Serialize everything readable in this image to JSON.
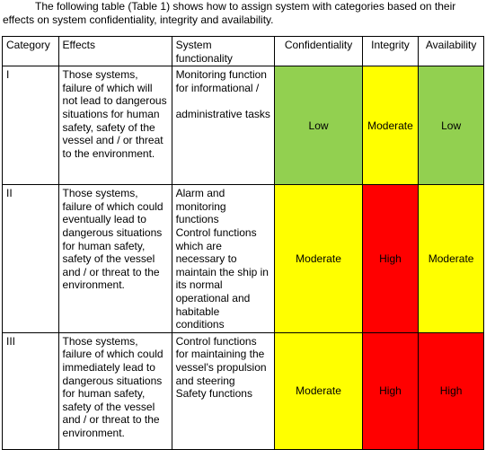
{
  "intro_text": "The following table (Table 1) shows how to assign system with categories based on their effects on system confidentiality, integrity and availability.",
  "colors": {
    "low": "#92d050",
    "moderate": "#ffff00",
    "high": "#ff0000"
  },
  "table": {
    "headers": {
      "category": "Category",
      "effects": "Effects",
      "system_functionality": "System functionality",
      "confidentiality": "Confidentiality",
      "integrity": "Integrity",
      "availability": "Availability"
    },
    "rows": [
      {
        "category": "I",
        "effects": "Those systems, failure of which will not lead to dangerous situations for human safety, safety of the vessel and / or threat to the environment.",
        "functionality_1": "Monitoring function for informational /",
        "functionality_2": "administrative tasks",
        "confidentiality": "Low",
        "integrity": "Moderate",
        "availability": "Low"
      },
      {
        "category": "II",
        "effects": "Those systems, failure of which could eventually lead to dangerous situations for human safety, safety of the vessel and / or threat to the environment.",
        "functionality_1": "Alarm and monitoring functions",
        "functionality_2": "Control functions which are necessary to maintain the ship in its normal operational and habitable conditions",
        "confidentiality": "Moderate",
        "integrity": "High",
        "availability": "Moderate"
      },
      {
        "category": "III",
        "effects": "Those systems, failure of which could immediately lead to dangerous situations for human safety, safety of the vessel and / or threat to the environment.",
        "functionality_1": "Control functions for maintaining the vessel's propulsion and steering",
        "functionality_2": "Safety functions",
        "confidentiality": "Moderate",
        "integrity": "High",
        "availability": "High"
      }
    ]
  }
}
